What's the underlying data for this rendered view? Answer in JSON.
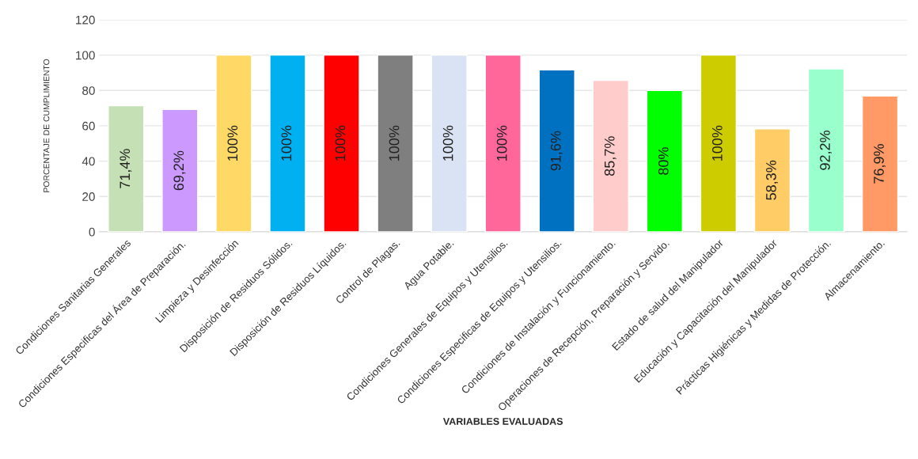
{
  "chart_data": {
    "type": "bar",
    "xlabel": "VARIABLES EVALUADAS",
    "ylabel": "PORCENTAJE DE CUMPLIMIENTO",
    "categories": [
      "Condiciones Sanitarias Generales",
      "Condiciones Especificas del Área de Preparación.",
      "Limpieza y Desinfección",
      "Disposición de Residuos Sólidos.",
      "Disposición de Residuos Líquidos.",
      "Control de Plagas.",
      "Agua Potable.",
      "Condiciones Generales de Equipos y Utensilios.",
      "Condiciones Especificas de Equipos y Utensilios.",
      "Condiciones de Instalación y Funcionamiento.",
      "Operaciones de Recepción, Preparación y Servido.",
      "Estado de salud del Manipulador",
      "Educación y Capacitación del Manipulador",
      "Prácticas Higiénicas y Medidas de Protección.",
      "Almacenamiento."
    ],
    "values": [
      71.4,
      69.2,
      100,
      100,
      100,
      100,
      100,
      100,
      91.6,
      85.7,
      80,
      100,
      58.3,
      92.2,
      76.9
    ],
    "value_labels": [
      "71,4%",
      "69,2%",
      "100%",
      "100%",
      "100%",
      "100%",
      "100%",
      "100%",
      "91,6%",
      "85,7%",
      "80%",
      "100%",
      "58,3%",
      "92,2%",
      "76,9%"
    ],
    "colors": [
      "#c5e0b4",
      "#cc99ff",
      "#ffd966",
      "#00b0f0",
      "#ff0000",
      "#7f7f7f",
      "#dae3f3",
      "#ff6699",
      "#0070c0",
      "#ffcccc",
      "#00ff00",
      "#cccc00",
      "#ffcc66",
      "#99ffcc",
      "#ff9966"
    ],
    "ylim": [
      0,
      120
    ],
    "yticks": [
      0,
      20,
      40,
      60,
      80,
      100,
      120
    ],
    "grid": "y"
  }
}
